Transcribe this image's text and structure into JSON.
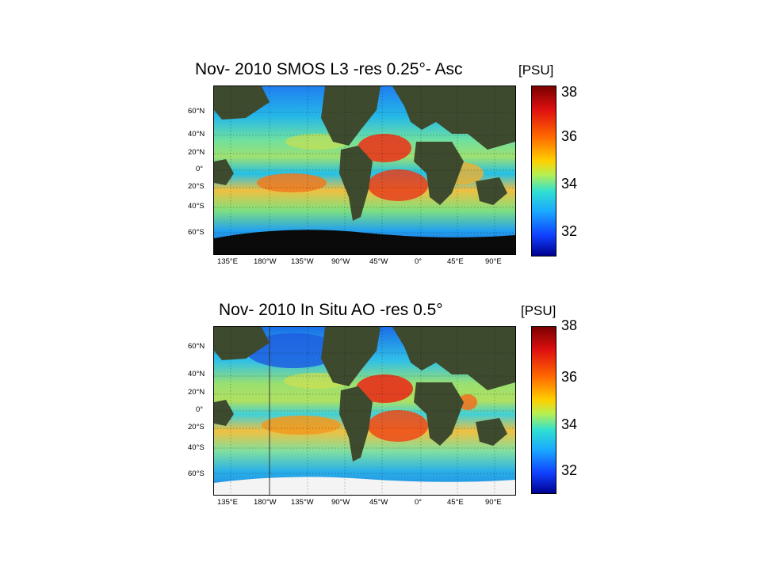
{
  "panels": [
    {
      "title": "Nov- 2010 SMOS L3 -res 0.25°- Asc",
      "unit": "[PSU]",
      "lat_labels": [
        "60°N",
        "40°N",
        "20°N",
        "0°",
        "20°S",
        "40°S",
        "60°S"
      ],
      "lon_labels": [
        "135°E",
        "180°W",
        "135°W",
        "90°W",
        "45°W",
        "0°",
        "45°E",
        "90°E"
      ],
      "colorbar": {
        "ticks": [
          "38",
          "36",
          "34",
          "32"
        ],
        "min": 31,
        "max": 38.2
      }
    },
    {
      "title": "Nov- 2010 In Situ AO -res 0.5°",
      "unit": "[PSU]",
      "lat_labels": [
        "60°N",
        "40°N",
        "20°N",
        "0°",
        "20°S",
        "40°S",
        "60°S"
      ],
      "lon_labels": [
        "135°E",
        "180°W",
        "135°W",
        "90°W",
        "45°W",
        "0°",
        "45°E",
        "90°E"
      ],
      "colorbar": {
        "ticks": [
          "38",
          "36",
          "34",
          "32"
        ],
        "min": 31,
        "max": 38.2
      }
    }
  ],
  "colors": {
    "land": "#3d4a2e",
    "ice": "#0a0a0a",
    "ocean_low": "#1e90ff",
    "ocean_mid": "#7fe07f",
    "ocean_high": "#ff3b1a"
  }
}
